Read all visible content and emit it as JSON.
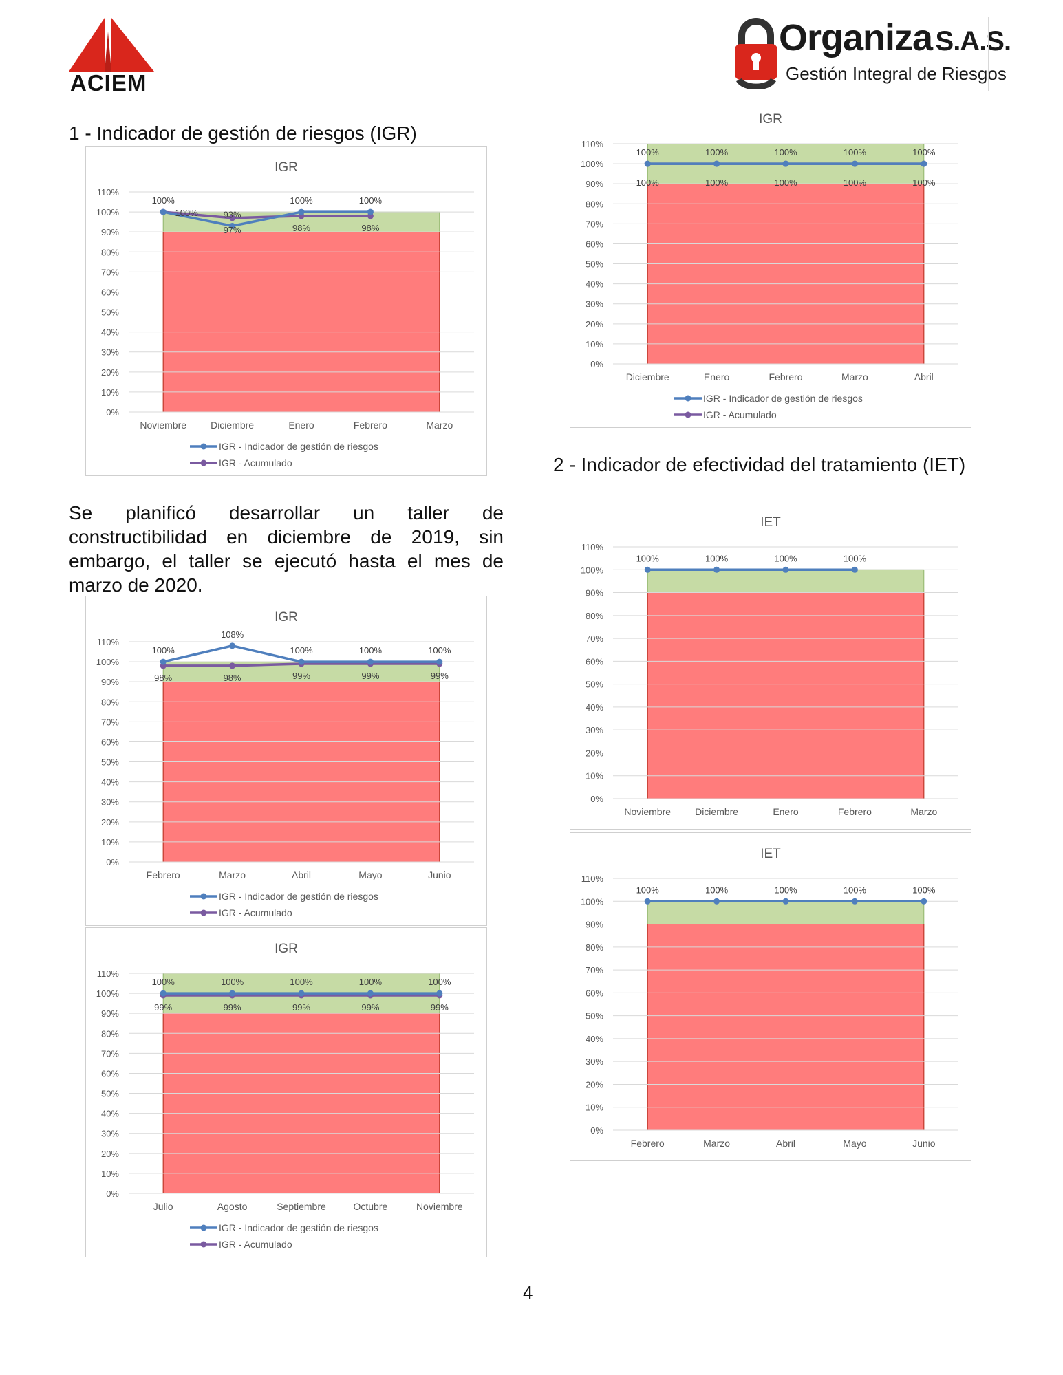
{
  "logos": {
    "left_text": "ACIEM",
    "right_title": "Organiza",
    "right_suffix": "S.A.S.",
    "right_subtitle": "Gestión Integral de Riesgos"
  },
  "headings": {
    "section1": "1 - Indicador de gestión de riesgos (IGR)",
    "section2": "2 - Indicador de efectividad del tratamiento (IET)"
  },
  "paragraph": "Se planificó desarrollar un taller de constructibilidad en diciembre de 2019, sin embargo, el taller se ejecutó hasta el mes de marzo de 2020.",
  "page_number": "4",
  "colors": {
    "red_zone": "#ff7c7c",
    "green_zone": "#c6dba5",
    "series1": "#4f7fbd",
    "series2": "#7a5aa0"
  },
  "chart_data": [
    {
      "id": "igr-nov-mar",
      "type": "line",
      "title": "IGR",
      "categories": [
        "Noviembre",
        "Diciembre",
        "Enero",
        "Febrero",
        "Marzo"
      ],
      "ylim": [
        0,
        110
      ],
      "yticks": [
        "0%",
        "10%",
        "20%",
        "30%",
        "40%",
        "50%",
        "60%",
        "70%",
        "80%",
        "90%",
        "100%",
        "110%"
      ],
      "bands": {
        "red_to": 90,
        "green_to": 100
      },
      "series": [
        {
          "name": "IGR - Indicador de gestión de riesgos",
          "values": [
            100,
            93,
            100,
            100,
            null
          ],
          "labels": [
            "100%",
            "93%",
            "100%",
            "100%",
            ""
          ]
        },
        {
          "name": "IGR - Acumulado",
          "values": [
            100,
            97,
            98,
            98,
            null
          ],
          "labels": [
            "100%",
            "97%",
            "98%",
            "98%",
            ""
          ]
        }
      ]
    },
    {
      "id": "igr-dic-abr",
      "type": "line",
      "title": "IGR",
      "categories": [
        "Diciembre",
        "Enero",
        "Febrero",
        "Marzo",
        "Abril"
      ],
      "ylim": [
        0,
        110
      ],
      "yticks": [
        "0%",
        "10%",
        "20%",
        "30%",
        "40%",
        "50%",
        "60%",
        "70%",
        "80%",
        "90%",
        "100%",
        "110%"
      ],
      "bands": {
        "red_to": 90,
        "green_to": 110
      },
      "series": [
        {
          "name": "IGR - Indicador de gestión de riesgos",
          "values": [
            100,
            100,
            100,
            100,
            100
          ],
          "labels": [
            "100%",
            "100%",
            "100%",
            "100%",
            "100%"
          ]
        },
        {
          "name": "IGR - Acumulado",
          "values": [
            100,
            100,
            100,
            100,
            100
          ],
          "labels": [
            "100%",
            "100%",
            "100%",
            "100%",
            "100%"
          ]
        }
      ]
    },
    {
      "id": "igr-feb-jun",
      "type": "line",
      "title": "IGR",
      "categories": [
        "Febrero",
        "Marzo",
        "Abril",
        "Mayo",
        "Junio"
      ],
      "ylim": [
        0,
        110
      ],
      "yticks": [
        "0%",
        "10%",
        "20%",
        "30%",
        "40%",
        "50%",
        "60%",
        "70%",
        "80%",
        "90%",
        "100%",
        "110%"
      ],
      "bands": {
        "red_to": 90,
        "green_to": 100
      },
      "series": [
        {
          "name": "IGR - Indicador de gestión de riesgos",
          "values": [
            100,
            108,
            100,
            100,
            100
          ],
          "labels": [
            "100%",
            "108%",
            "100%",
            "100%",
            "100%"
          ]
        },
        {
          "name": "IGR - Acumulado",
          "values": [
            98,
            98,
            99,
            99,
            99
          ],
          "labels": [
            "98%",
            "98%",
            "99%",
            "99%",
            "99%"
          ]
        }
      ]
    },
    {
      "id": "igr-jul-nov",
      "type": "line",
      "title": "IGR",
      "categories": [
        "Julio",
        "Agosto",
        "Septiembre",
        "Octubre",
        "Noviembre"
      ],
      "ylim": [
        0,
        110
      ],
      "yticks": [
        "0%",
        "10%",
        "20%",
        "30%",
        "40%",
        "50%",
        "60%",
        "70%",
        "80%",
        "90%",
        "100%",
        "110%"
      ],
      "bands": {
        "red_to": 90,
        "green_to": 110
      },
      "series": [
        {
          "name": "IGR - Indicador de gestión de riesgos",
          "values": [
            100,
            100,
            100,
            100,
            100
          ],
          "labels": [
            "100%",
            "100%",
            "100%",
            "100%",
            "100%"
          ]
        },
        {
          "name": "IGR - Acumulado",
          "values": [
            99,
            99,
            99,
            99,
            99
          ],
          "labels": [
            "99%",
            "99%",
            "99%",
            "99%",
            "99%"
          ]
        }
      ]
    },
    {
      "id": "iet-nov-mar",
      "type": "line",
      "title": "IET",
      "categories": [
        "Noviembre",
        "Diciembre",
        "Enero",
        "Febrero",
        "Marzo"
      ],
      "ylim": [
        0,
        110
      ],
      "yticks": [
        "0%",
        "10%",
        "20%",
        "30%",
        "40%",
        "50%",
        "60%",
        "70%",
        "80%",
        "90%",
        "100%",
        "110%"
      ],
      "bands": {
        "red_to": 90,
        "green_to": 100
      },
      "series": [
        {
          "name": "",
          "values": [
            100,
            100,
            100,
            100,
            null
          ],
          "labels": [
            "100%",
            "100%",
            "100%",
            "100%",
            ""
          ]
        }
      ]
    },
    {
      "id": "iet-feb-jun",
      "type": "line",
      "title": "IET",
      "categories": [
        "Febrero",
        "Marzo",
        "Abril",
        "Mayo",
        "Junio"
      ],
      "ylim": [
        0,
        110
      ],
      "yticks": [
        "0%",
        "10%",
        "20%",
        "30%",
        "40%",
        "50%",
        "60%",
        "70%",
        "80%",
        "90%",
        "100%",
        "110%"
      ],
      "bands": {
        "red_to": 90,
        "green_to": 100
      },
      "series": [
        {
          "name": "",
          "values": [
            100,
            100,
            100,
            100,
            100
          ],
          "labels": [
            "100%",
            "100%",
            "100%",
            "100%",
            "100%"
          ]
        }
      ]
    }
  ]
}
